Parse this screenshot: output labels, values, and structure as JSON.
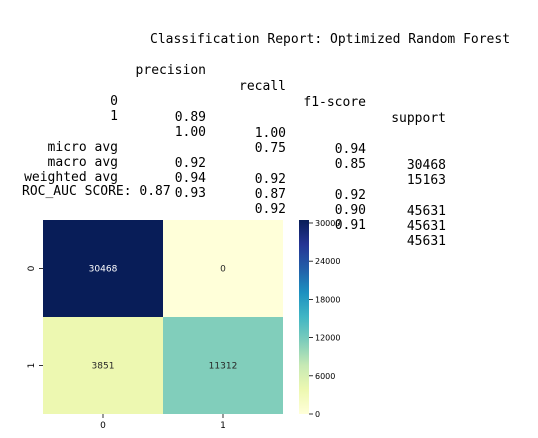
{
  "report": {
    "title": "Classification Report: Optimized Random Forest",
    "headers": [
      "precision",
      "recall",
      "f1-score",
      "support"
    ],
    "rows": [
      {
        "label": "0",
        "values": [
          "0.89",
          "1.00",
          "0.94",
          "30468"
        ]
      },
      {
        "label": "1",
        "values": [
          "1.00",
          "0.75",
          "0.85",
          "15163"
        ]
      }
    ],
    "averages": [
      {
        "label": "micro avg",
        "values": [
          "0.92",
          "0.92",
          "0.92",
          "45631"
        ]
      },
      {
        "label": "macro avg",
        "values": [
          "0.94",
          "0.87",
          "0.90",
          "45631"
        ]
      },
      {
        "label": "weighted avg",
        "values": [
          "0.93",
          "0.92",
          "0.91",
          "45631"
        ]
      }
    ],
    "roc_auc": "ROC_AUC SCORE: 0.87"
  },
  "chart_data": {
    "type": "heatmap",
    "x_ticks": [
      "0",
      "1"
    ],
    "y_ticks": [
      "0",
      "1"
    ],
    "matrix": [
      [
        30468,
        0
      ],
      [
        3851,
        11312
      ]
    ],
    "annotations": [
      [
        "30468",
        "0"
      ],
      [
        "3851",
        "11312"
      ]
    ],
    "colormap": "YlGnBu",
    "colorbar": {
      "ticks": [
        "0",
        "6000",
        "12000",
        "18000",
        "24000",
        "30000"
      ],
      "tick_values": [
        0,
        6000,
        12000,
        18000,
        24000,
        30000
      ],
      "range": [
        0,
        30468
      ]
    },
    "grid": false,
    "legend": "none"
  }
}
